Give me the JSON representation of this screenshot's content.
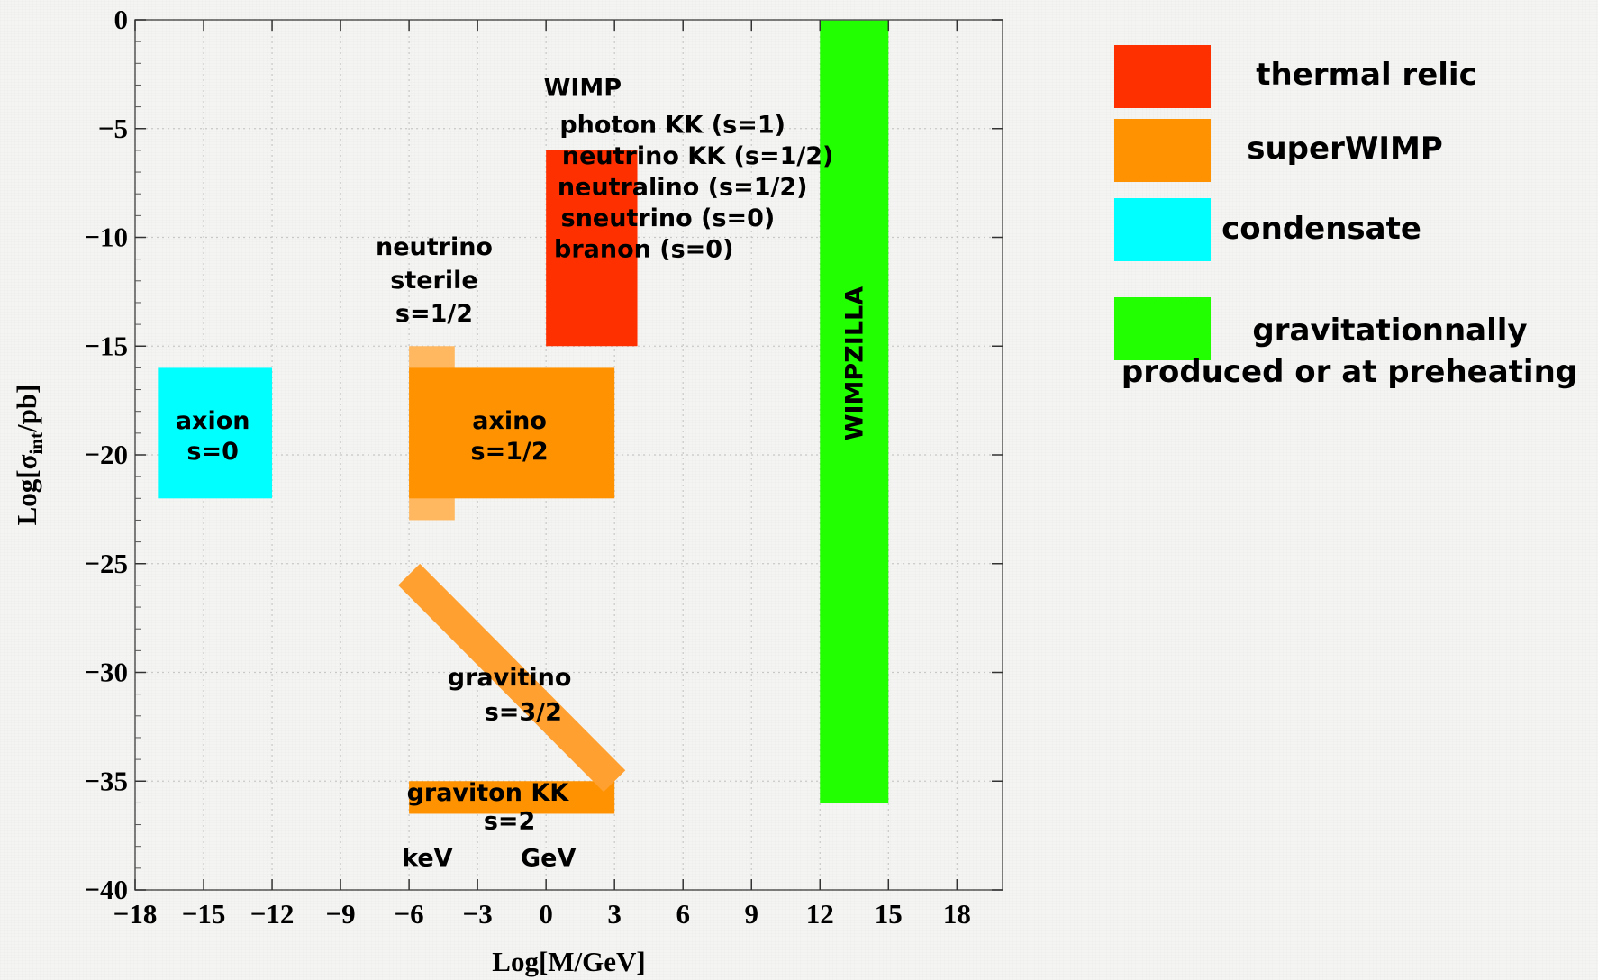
{
  "chart_data": {
    "type": "area",
    "xlabel": "Log[M/GeV]",
    "ylabel_main": "Log[σ",
    "ylabel_sub": "int",
    "ylabel_end": "/pb]",
    "xlim": [
      -18,
      20
    ],
    "ylim": [
      -40,
      0
    ],
    "xticks": [
      -18,
      -15,
      -12,
      -9,
      -6,
      -3,
      0,
      3,
      6,
      9,
      12,
      15,
      18
    ],
    "xtick_labels": [
      "−18",
      "−15",
      "−12",
      "−9",
      "−6",
      "−3",
      "0",
      "3",
      "6",
      "9",
      "12",
      "15",
      "18"
    ],
    "yticks": [
      0,
      -5,
      -10,
      -15,
      -20,
      -25,
      -30,
      -35,
      -40
    ],
    "ytick_labels": [
      "0",
      "−5",
      "−10",
      "−15",
      "−20",
      "−25",
      "−30",
      "−35",
      "−40"
    ],
    "grid": true,
    "colors": {
      "thermal_relic": "#ff3000",
      "superwimp": "#ff9200",
      "superwimp_light": "#ffb860",
      "gravitino": "#ffa030",
      "condensate": "#00ffff",
      "gravitational": "#22ff00"
    },
    "regions": [
      {
        "id": "axion",
        "category": "condensate",
        "x": [
          -17,
          -12
        ],
        "y": [
          -22,
          -16
        ],
        "label": [
          "axion",
          "s=0"
        ]
      },
      {
        "id": "sterile-neutrino",
        "category": "superwimp_light",
        "x": [
          -6,
          -4
        ],
        "y": [
          -23,
          -15
        ]
      },
      {
        "id": "axino",
        "category": "superwimp",
        "x": [
          -6,
          3
        ],
        "y": [
          -22,
          -16
        ],
        "label": [
          "axino",
          "s=1/2"
        ]
      },
      {
        "id": "wimp",
        "category": "thermal_relic",
        "x": [
          0,
          4
        ],
        "y": [
          -15,
          -6
        ]
      },
      {
        "id": "graviton-kk",
        "category": "superwimp",
        "x": [
          -6,
          3
        ],
        "y": [
          -36.5,
          -35
        ]
      },
      {
        "id": "wimpzilla",
        "category": "gravitational",
        "x": [
          12,
          15
        ],
        "y": [
          -36,
          0
        ]
      }
    ],
    "gravitino_band": {
      "from": [
        -6,
        -25.5
      ],
      "to": [
        3,
        -35
      ],
      "category": "gravitino",
      "label": [
        "gravitino",
        "s=3/2"
      ]
    },
    "annotations": {
      "wimp_title": "WIMP",
      "wimp_list": [
        "photon KK (s=1)",
        "neutrino KK (s=1/2)",
        "neutralino (s=1/2)",
        "sneutrino (s=0)",
        "branon (s=0)"
      ],
      "sterile": [
        "neutrino",
        "sterile",
        "s=1/2"
      ],
      "graviton": [
        "graviton KK",
        "s=2"
      ],
      "wimpzilla": "WIMPZILLA",
      "kev": "keV",
      "gev": "GeV"
    },
    "legend": {
      "placement": "right",
      "items": [
        {
          "color_key": "thermal_relic",
          "label": "thermal relic"
        },
        {
          "color_key": "superwimp",
          "label": "superWIMP"
        },
        {
          "color_key": "condensate",
          "label": "condensate"
        },
        {
          "color_key": "gravitational",
          "label": "gravitationnally",
          "label2": "produced or at preheating"
        }
      ]
    }
  }
}
